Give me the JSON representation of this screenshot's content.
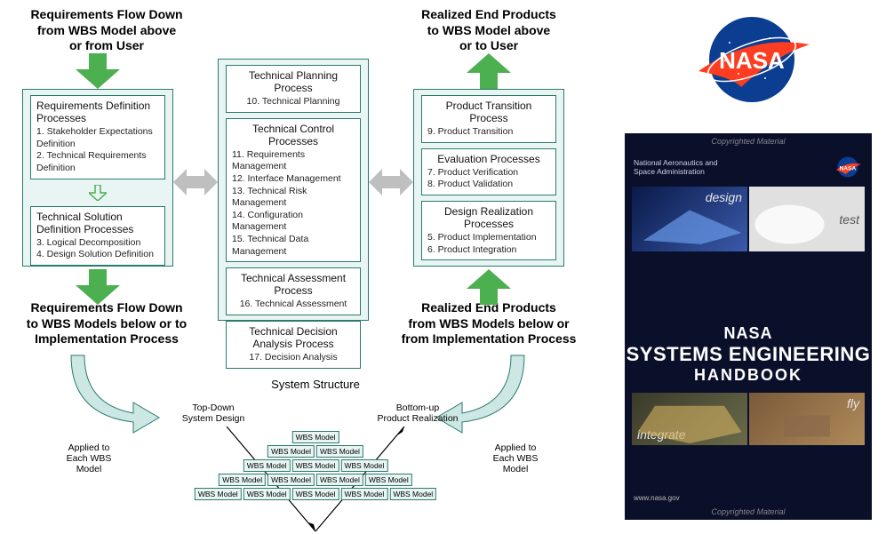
{
  "captions": {
    "top_left": "Requirements Flow Down\nfrom WBS Model above\nor from User",
    "top_right": "Realized End Products\nto WBS Model above\nor to User",
    "bot_left": "Requirements Flow Down\nto WBS Models below or to\nImplementation Process",
    "bot_right": "Realized End Products\nfrom WBS Models below or\nfrom Implementation Process"
  },
  "columns": {
    "left": {
      "groups": [
        {
          "title": "Requirements Definition Processes",
          "items": [
            "1. Stakeholder Expectations Definition",
            "2. Technical Requirements Definition"
          ]
        },
        {
          "title": "Technical Solution Definition Processes",
          "items": [
            "3. Logical Decomposition",
            "4. Design Solution Definition"
          ]
        }
      ],
      "inner_arrow": true
    },
    "center": {
      "groups": [
        {
          "title": "Technical Planning Process",
          "items": [
            "10. Technical Planning"
          ]
        },
        {
          "title": "Technical Control Processes",
          "items": [
            "11. Requirements Management",
            "12. Interface Management",
            "13. Technical Risk Management",
            "14. Configuration Management",
            "15. Technical Data Management"
          ]
        },
        {
          "title": "Technical Assessment Process",
          "items": [
            "16. Technical Assessment"
          ]
        },
        {
          "title": "Technical Decision Analysis Process",
          "items": [
            "17. Decision Analysis"
          ]
        }
      ]
    },
    "right": {
      "groups": [
        {
          "title": "Product Transition Process",
          "items": [
            "9. Product Transition"
          ]
        },
        {
          "title": "Evaluation Processes",
          "items": [
            "7. Product Verification",
            "8. Product Validation"
          ]
        },
        {
          "title": "Design Realization Processes",
          "items": [
            "5. Product Implementation",
            "6. Product Integration"
          ]
        }
      ]
    }
  },
  "system_structure": {
    "title": "System Structure",
    "left_label": "Top-Down\nSystem Design",
    "right_label": "Bottom-up\nProduct Realization",
    "cell_label": "WBS Model",
    "rows": [
      1,
      2,
      3,
      4,
      5
    ],
    "applied": "Applied to\nEach WBS\nModel"
  },
  "colors": {
    "box_border": "#2a7a6e",
    "box_fill": "#e8f5f3",
    "arrow_green": "#4caf50",
    "arrow_gray": "#bfbfbf",
    "nasa_blue": "#0b3d91",
    "nasa_red": "#fc3d21",
    "book_bg": "#0a1a4a"
  },
  "logo": {
    "text": "NASA"
  },
  "book": {
    "copyrighted": "Copyrighted Material",
    "agency": "National Aeronautics and\nSpace Administration",
    "title_n": "NASA",
    "title_se": "SYSTEMS ENGINEERING",
    "title_hb": "HANDBOOK",
    "url": "www.nasa.gov",
    "quads_top": [
      "design",
      "test"
    ],
    "quads_bot": [
      "integrate",
      "fly"
    ],
    "quad_colors": {
      "design": "#1a3a7a",
      "test": "#d8d8d8",
      "integrate": "#4a4a3a",
      "fly": "#8a6a4a"
    }
  }
}
